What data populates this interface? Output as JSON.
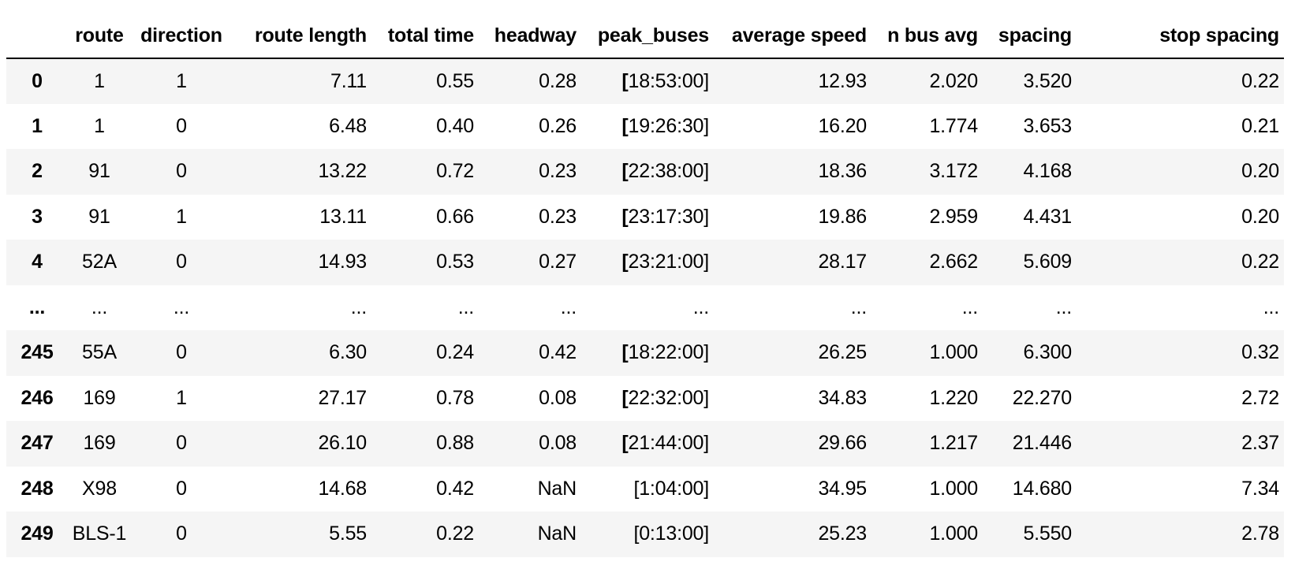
{
  "table": {
    "columns": [
      "",
      "route",
      "direction",
      "route length",
      "total time",
      "headway",
      "peak_buses",
      "average speed",
      "n bus avg",
      "spacing",
      "stop spacing"
    ],
    "rows": [
      {
        "index": "0",
        "route": "1",
        "direction": "1",
        "route_length": "7.11",
        "total_time": "0.55",
        "headway": "0.28",
        "peak_buses": "18:53:00]",
        "peak_bold_bracket": true,
        "average_speed": "12.93",
        "n_bus_avg": "2.020",
        "spacing": "3.520",
        "stop_spacing": "0.22"
      },
      {
        "index": "1",
        "route": "1",
        "direction": "0",
        "route_length": "6.48",
        "total_time": "0.40",
        "headway": "0.26",
        "peak_buses": "19:26:30]",
        "peak_bold_bracket": true,
        "average_speed": "16.20",
        "n_bus_avg": "1.774",
        "spacing": "3.653",
        "stop_spacing": "0.21"
      },
      {
        "index": "2",
        "route": "91",
        "direction": "0",
        "route_length": "13.22",
        "total_time": "0.72",
        "headway": "0.23",
        "peak_buses": "22:38:00]",
        "peak_bold_bracket": true,
        "average_speed": "18.36",
        "n_bus_avg": "3.172",
        "spacing": "4.168",
        "stop_spacing": "0.20"
      },
      {
        "index": "3",
        "route": "91",
        "direction": "1",
        "route_length": "13.11",
        "total_time": "0.66",
        "headway": "0.23",
        "peak_buses": "23:17:30]",
        "peak_bold_bracket": true,
        "average_speed": "19.86",
        "n_bus_avg": "2.959",
        "spacing": "4.431",
        "stop_spacing": "0.20"
      },
      {
        "index": "4",
        "route": "52A",
        "direction": "0",
        "route_length": "14.93",
        "total_time": "0.53",
        "headway": "0.27",
        "peak_buses": "23:21:00]",
        "peak_bold_bracket": true,
        "average_speed": "28.17",
        "n_bus_avg": "2.662",
        "spacing": "5.609",
        "stop_spacing": "0.22"
      },
      {
        "index": "...",
        "route": "...",
        "direction": "...",
        "route_length": "...",
        "total_time": "...",
        "headway": "...",
        "peak_buses": "...",
        "peak_bold_bracket": false,
        "average_speed": "...",
        "n_bus_avg": "...",
        "spacing": "...",
        "stop_spacing": "..."
      },
      {
        "index": "245",
        "route": "55A",
        "direction": "0",
        "route_length": "6.30",
        "total_time": "0.24",
        "headway": "0.42",
        "peak_buses": "18:22:00]",
        "peak_bold_bracket": true,
        "average_speed": "26.25",
        "n_bus_avg": "1.000",
        "spacing": "6.300",
        "stop_spacing": "0.32"
      },
      {
        "index": "246",
        "route": "169",
        "direction": "1",
        "route_length": "27.17",
        "total_time": "0.78",
        "headway": "0.08",
        "peak_buses": "22:32:00]",
        "peak_bold_bracket": true,
        "average_speed": "34.83",
        "n_bus_avg": "1.220",
        "spacing": "22.270",
        "stop_spacing": "2.72"
      },
      {
        "index": "247",
        "route": "169",
        "direction": "0",
        "route_length": "26.10",
        "total_time": "0.88",
        "headway": "0.08",
        "peak_buses": "21:44:00]",
        "peak_bold_bracket": true,
        "average_speed": "29.66",
        "n_bus_avg": "1.217",
        "spacing": "21.446",
        "stop_spacing": "2.37"
      },
      {
        "index": "248",
        "route": "X98",
        "direction": "0",
        "route_length": "14.68",
        "total_time": "0.42",
        "headway": "NaN",
        "peak_buses": "[1:04:00]",
        "peak_bold_bracket": false,
        "average_speed": "34.95",
        "n_bus_avg": "1.000",
        "spacing": "14.680",
        "stop_spacing": "7.34"
      },
      {
        "index": "249",
        "route": "BLS-1",
        "direction": "0",
        "route_length": "5.55",
        "total_time": "0.22",
        "headway": "NaN",
        "peak_buses": "[0:13:00]",
        "peak_bold_bracket": false,
        "average_speed": "25.23",
        "n_bus_avg": "1.000",
        "spacing": "5.550",
        "stop_spacing": "2.78"
      }
    ]
  }
}
